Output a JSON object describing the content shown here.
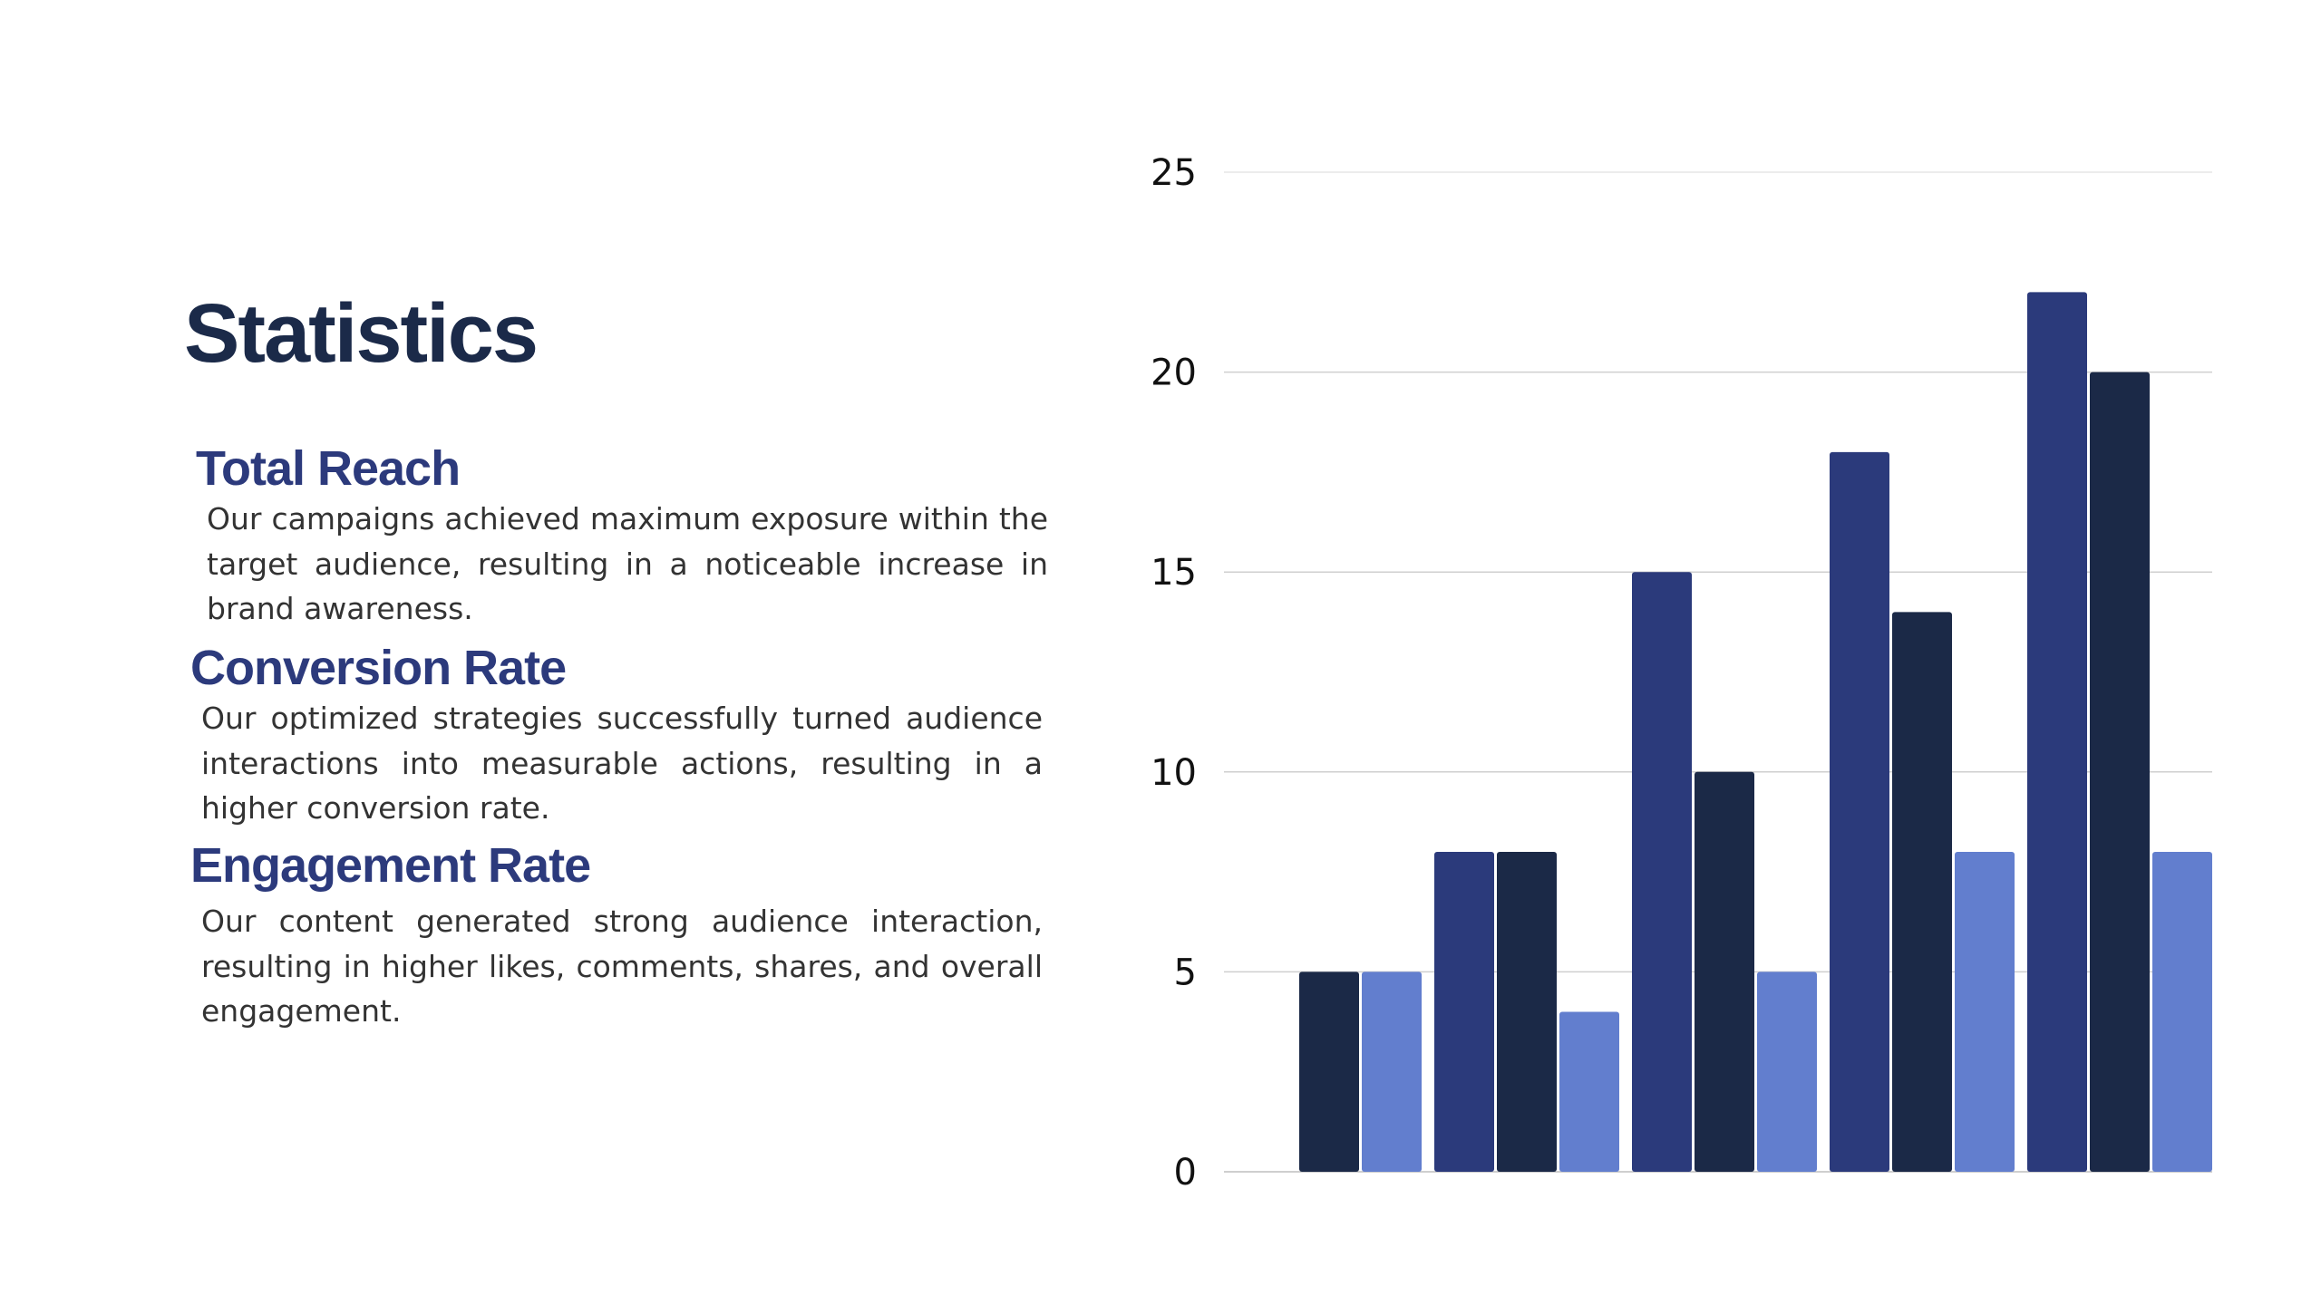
{
  "title": "Statistics",
  "stats": [
    {
      "heading": "Total Reach",
      "body": "Our campaigns achieved maximum exposure within the target audience, resulting in a noticeable increase in brand awareness."
    },
    {
      "heading": "Conversion Rate",
      "body": "Our optimized strategies successfully turned audience interactions into measurable actions, resulting in a higher conversion rate."
    },
    {
      "heading": "Engagement Rate",
      "body": "Our content generated strong audience interaction, resulting in higher likes, comments, shares, and overall engagement."
    }
  ],
  "chart_data": {
    "type": "bar",
    "title": "",
    "xlabel": "",
    "ylabel": "",
    "categories": [
      "",
      "",
      "",
      "",
      ""
    ],
    "ylim": [
      0,
      25
    ],
    "yticks": [
      0,
      5,
      10,
      15,
      20,
      25
    ],
    "grid": true,
    "legend": "none",
    "series": [
      {
        "color": "#2b3a7b",
        "values": [
          null,
          8,
          15,
          18,
          22
        ]
      },
      {
        "color": "#1b2947",
        "values": [
          5,
          8,
          10,
          14,
          20
        ]
      },
      {
        "color": "#627ece",
        "values": [
          5,
          4,
          5,
          8,
          8
        ]
      }
    ]
  }
}
